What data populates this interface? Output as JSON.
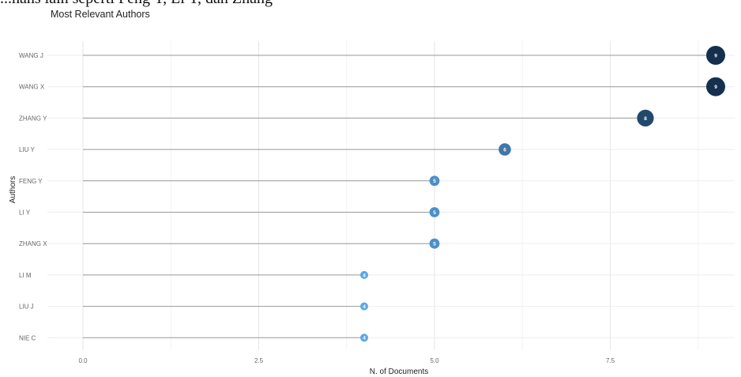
{
  "caption_fragment": "...hans lain seperti Feng Y, Li Y, dan Zhang",
  "chart_data": {
    "type": "lollipop",
    "title": "Most Relevant Authors",
    "xlabel": "N. of Documents",
    "ylabel": "Authors",
    "xlim": [
      0,
      9
    ],
    "xticks": [
      0.0,
      2.5,
      5.0,
      7.5
    ],
    "xtick_labels": [
      "0.0",
      "2.5",
      "5.0",
      "7.5"
    ],
    "grid": true,
    "categories": [
      "WANG J",
      "WANG X",
      "ZHANG Y",
      "LIU Y",
      "FENG Y",
      "LI Y",
      "ZHANG X",
      "LI M",
      "LIU J",
      "NIE C"
    ],
    "values": [
      9,
      9,
      8,
      6,
      5,
      5,
      5,
      4,
      4,
      4
    ],
    "value_labels": [
      "9",
      "9",
      "8",
      "6",
      "5",
      "5",
      "5",
      "4",
      "4",
      "4"
    ],
    "color_scale": {
      "low": "#5aa7e6",
      "high": "#14304e"
    }
  }
}
